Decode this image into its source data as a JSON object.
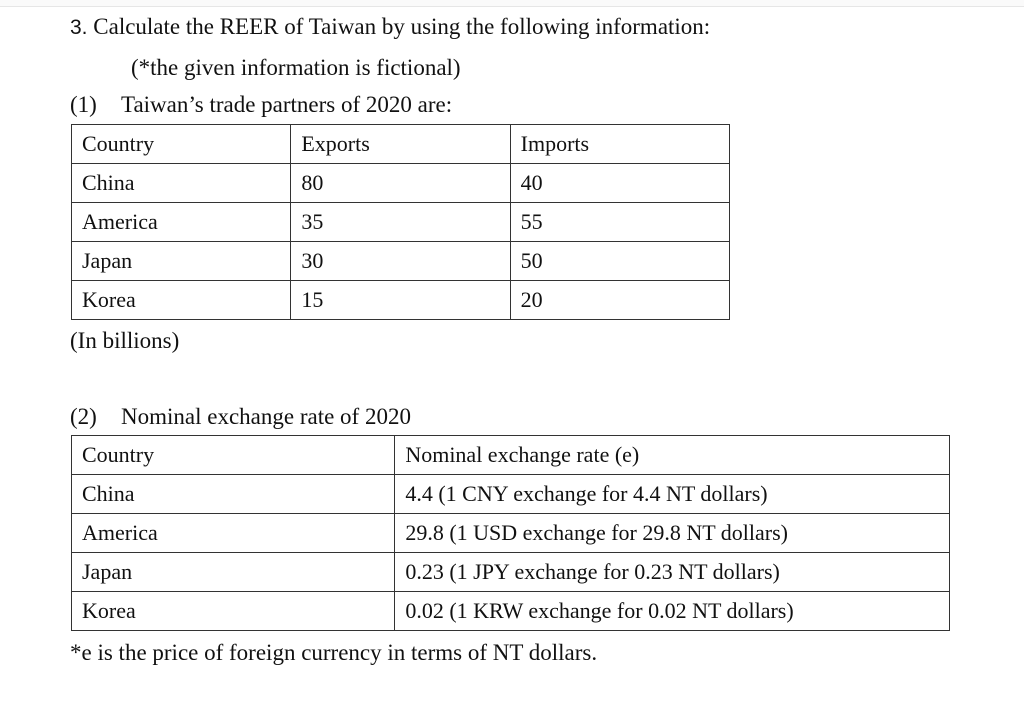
{
  "question": {
    "number": "3.",
    "title": "Calculate the REER of Taiwan by using the following information:",
    "subtitle": "(*the given information is fictional)"
  },
  "section1": {
    "marker": "(1)",
    "heading": "Taiwan’s trade partners of 2020 are:",
    "table": {
      "headers": [
        "Country",
        "Exports",
        "Imports"
      ],
      "rows": [
        [
          "China",
          "80",
          "40"
        ],
        [
          "America",
          "35",
          "55"
        ],
        [
          "Japan",
          "30",
          "50"
        ],
        [
          "Korea",
          "15",
          "20"
        ]
      ]
    },
    "note": "(In billions)"
  },
  "section2": {
    "marker": "(2)",
    "heading": "Nominal exchange rate of 2020",
    "table": {
      "headers": [
        "Country",
        "Nominal exchange rate (e)"
      ],
      "rows": [
        [
          "China",
          "4.4 (1 CNY exchange for 4.4 NT dollars)"
        ],
        [
          "America",
          "29.8 (1 USD exchange for 29.8 NT dollars)"
        ],
        [
          "Japan",
          "0.23 (1 JPY exchange for 0.23 NT dollars)"
        ],
        [
          "Korea",
          "0.02 (1 KRW exchange for 0.02 NT dollars)"
        ]
      ]
    },
    "note": "*e is the price of foreign currency in terms of NT dollars."
  }
}
